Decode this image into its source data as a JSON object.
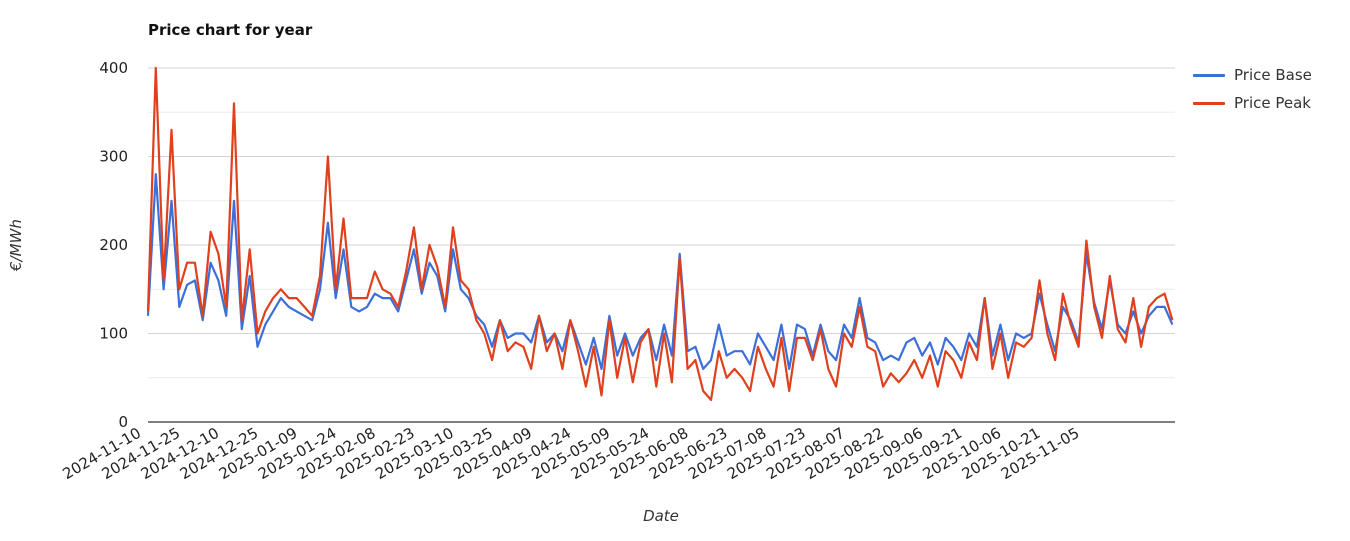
{
  "chart_data": {
    "type": "line",
    "title": "Price chart for year",
    "xlabel": "Date",
    "ylabel": "€/MWh",
    "ylim": [
      0,
      400
    ],
    "yticks": [
      0,
      100,
      200,
      300,
      400
    ],
    "grid": true,
    "legend_position": "right",
    "x_start_date": "2024-11-10",
    "x_step_days": 3,
    "x_range_days": [
      0,
      394
    ],
    "xtick_step_days": 15,
    "xtick_labels": [
      "2024-11-10",
      "2024-11-25",
      "2024-12-10",
      "2024-12-25",
      "2025-01-09",
      "2025-01-24",
      "2025-02-08",
      "2025-02-23",
      "2025-03-10",
      "2025-03-25",
      "2025-04-09",
      "2025-04-24",
      "2025-05-09",
      "2025-05-24",
      "2025-06-08",
      "2025-06-23",
      "2025-07-08",
      "2025-07-23",
      "2025-08-07",
      "2025-08-22",
      "2025-09-06",
      "2025-09-21",
      "2025-10-06",
      "2025-10-21",
      "2025-11-05"
    ],
    "series": [
      {
        "name": "Price Base",
        "color": "#3c6fd9",
        "values": [
          120,
          280,
          150,
          250,
          130,
          155,
          160,
          115,
          180,
          160,
          120,
          250,
          105,
          165,
          85,
          110,
          125,
          140,
          130,
          125,
          120,
          115,
          150,
          225,
          140,
          195,
          130,
          125,
          130,
          145,
          140,
          140,
          125,
          160,
          195,
          145,
          180,
          165,
          125,
          195,
          150,
          140,
          120,
          110,
          85,
          115,
          95,
          100,
          100,
          90,
          120,
          90,
          100,
          80,
          115,
          90,
          65,
          95,
          60,
          120,
          75,
          100,
          75,
          95,
          105,
          70,
          110,
          75,
          190,
          80,
          85,
          60,
          70,
          110,
          75,
          80,
          80,
          65,
          100,
          85,
          70,
          110,
          60,
          110,
          105,
          75,
          110,
          80,
          70,
          110,
          95,
          140,
          95,
          90,
          70,
          75,
          70,
          90,
          95,
          75,
          90,
          65,
          95,
          85,
          70,
          100,
          85,
          140,
          75,
          110,
          70,
          100,
          95,
          100,
          145,
          110,
          80,
          130,
          115,
          90,
          190,
          135,
          105,
          160,
          110,
          100,
          125,
          100,
          120,
          130,
          130,
          110
        ]
      },
      {
        "name": "Price Peak",
        "color": "#e0401c",
        "values": [
          125,
          400,
          160,
          330,
          150,
          180,
          180,
          120,
          215,
          190,
          130,
          360,
          115,
          195,
          100,
          125,
          140,
          150,
          140,
          140,
          130,
          120,
          165,
          300,
          150,
          230,
          140,
          140,
          140,
          170,
          150,
          145,
          130,
          170,
          220,
          150,
          200,
          175,
          130,
          220,
          160,
          150,
          115,
          100,
          70,
          115,
          80,
          90,
          85,
          60,
          120,
          80,
          100,
          60,
          115,
          80,
          40,
          85,
          30,
          115,
          50,
          95,
          45,
          90,
          105,
          40,
          100,
          45,
          185,
          60,
          70,
          35,
          25,
          80,
          50,
          60,
          50,
          35,
          85,
          60,
          40,
          95,
          35,
          95,
          95,
          70,
          105,
          60,
          40,
          100,
          85,
          130,
          85,
          80,
          40,
          55,
          45,
          55,
          70,
          50,
          75,
          40,
          80,
          70,
          50,
          90,
          70,
          140,
          60,
          100,
          50,
          90,
          85,
          95,
          160,
          100,
          70,
          145,
          110,
          85,
          205,
          130,
          95,
          165,
          105,
          90,
          140,
          85,
          130,
          140,
          145,
          115
        ]
      }
    ]
  }
}
